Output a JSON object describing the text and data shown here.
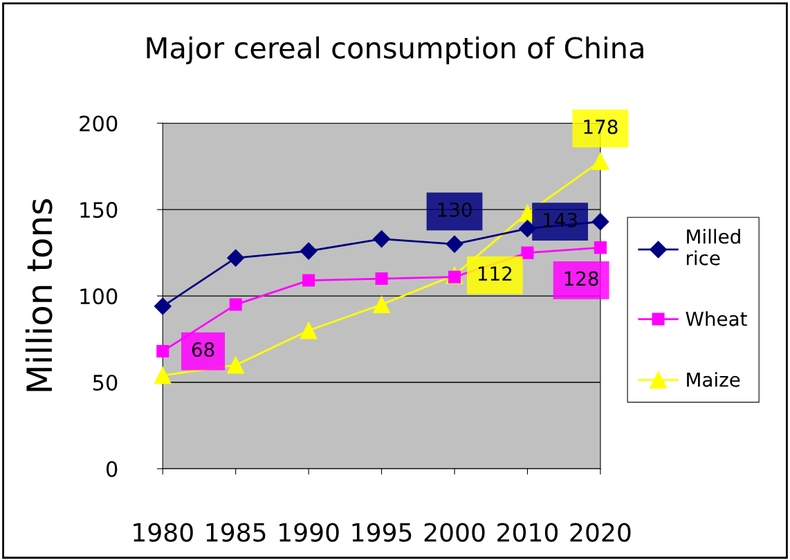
{
  "chart_data": {
    "type": "line",
    "title": "Major cereal consumption of China",
    "ylabel": "Million tons",
    "categories": [
      "1980",
      "1985",
      "1990",
      "1995",
      "2000",
      "2010",
      "2020"
    ],
    "series": [
      {
        "name": "Milled rice",
        "color": "#000080",
        "marker": "diamond",
        "values": [
          94,
          122,
          126,
          133,
          130,
          139,
          143
        ],
        "value_labels": [
          null,
          null,
          null,
          null,
          "130",
          null,
          "143"
        ]
      },
      {
        "name": "Wheat",
        "color": "#ff00ff",
        "marker": "square",
        "values": [
          68,
          95,
          109,
          110,
          111,
          125,
          128
        ],
        "value_labels": [
          "68",
          null,
          null,
          null,
          null,
          null,
          "128"
        ]
      },
      {
        "name": "Maize",
        "color": "#ffff00",
        "marker": "triangle",
        "values": [
          54,
          60,
          80,
          95,
          112,
          148,
          178
        ],
        "value_labels": [
          null,
          null,
          null,
          null,
          "112",
          null,
          "178"
        ]
      }
    ],
    "ylim": [
      0,
      200
    ],
    "yticks": [
      0,
      50,
      100,
      150,
      200
    ],
    "grid": "y",
    "legend": "right"
  }
}
